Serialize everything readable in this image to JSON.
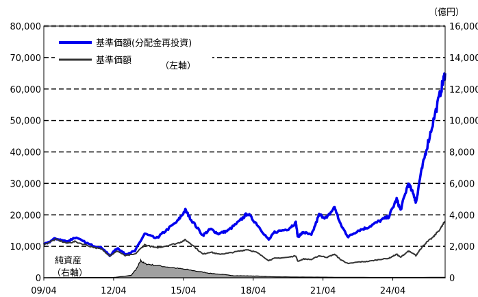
{
  "chart_data": {
    "type": "line",
    "unit_right": "（億円）",
    "left_axis": {
      "min": 0,
      "max": 80000,
      "ticks": [
        "0",
        "10,000",
        "20,000",
        "30,000",
        "40,000",
        "50,000",
        "60,000",
        "70,000",
        "80,000"
      ]
    },
    "right_axis": {
      "min": 0,
      "max": 16000,
      "ticks": [
        "0",
        "2,000",
        "4,000",
        "6,000",
        "8,000",
        "10,000",
        "12,000",
        "14,000",
        "16,000"
      ]
    },
    "x_axis": {
      "start": "2009-04",
      "end": "2026-07",
      "tick_labels": [
        "09/04",
        "12/04",
        "15/04",
        "18/04",
        "21/04",
        "24/04"
      ],
      "tick_dates": [
        "2009-04",
        "2012-04",
        "2015-04",
        "2018-04",
        "2021-04",
        "2024-04"
      ]
    },
    "grid": "horizontal-dashed",
    "legend": {
      "placement": "top-left",
      "items": [
        "基準価額(分配金再投資)",
        "基準価額"
      ],
      "note": "（左軸）"
    },
    "area_label": [
      "純資産",
      "（右軸）"
    ],
    "series": [
      {
        "name": "基準価額(分配金再投資)",
        "axis": "left",
        "color": "#0000ee",
        "points": [
          [
            "2009-04",
            10500
          ],
          [
            "2009-10",
            12500
          ],
          [
            "2010-04",
            11500
          ],
          [
            "2010-08",
            12800
          ],
          [
            "2011-04",
            10500
          ],
          [
            "2011-10",
            9500
          ],
          [
            "2012-02",
            7000
          ],
          [
            "2012-06",
            9500
          ],
          [
            "2012-10",
            7500
          ],
          [
            "2013-03",
            8500
          ],
          [
            "2013-08",
            14000
          ],
          [
            "2014-02",
            12500
          ],
          [
            "2014-06",
            14500
          ],
          [
            "2015-01",
            18000
          ],
          [
            "2015-05",
            21500
          ],
          [
            "2015-08",
            18500
          ],
          [
            "2016-02",
            13500
          ],
          [
            "2016-06",
            15500
          ],
          [
            "2016-10",
            14000
          ],
          [
            "2017-03",
            15000
          ],
          [
            "2017-09",
            18000
          ],
          [
            "2018-01",
            20500
          ],
          [
            "2018-06",
            17000
          ],
          [
            "2018-12",
            12000
          ],
          [
            "2019-03",
            14500
          ],
          [
            "2019-10",
            15500
          ],
          [
            "2020-02",
            17500
          ],
          [
            "2020-03",
            13000
          ],
          [
            "2020-06",
            14500
          ],
          [
            "2020-10",
            13500
          ],
          [
            "2021-02",
            20000
          ],
          [
            "2021-06",
            19000
          ],
          [
            "2021-10",
            22500
          ],
          [
            "2022-01",
            17000
          ],
          [
            "2022-05",
            13000
          ],
          [
            "2022-10",
            15000
          ],
          [
            "2023-03",
            16000
          ],
          [
            "2023-09",
            18000
          ],
          [
            "2024-02",
            19500
          ],
          [
            "2024-06",
            25000
          ],
          [
            "2024-08",
            21500
          ],
          [
            "2024-12",
            30000
          ],
          [
            "2025-03",
            26000
          ],
          [
            "2025-04",
            24000
          ],
          [
            "2025-06",
            31500
          ],
          [
            "2025-09",
            40000
          ],
          [
            "2026-01",
            50000
          ],
          [
            "2026-05",
            60000
          ],
          [
            "2026-07",
            65000
          ]
        ]
      },
      {
        "name": "基準価額",
        "axis": "left",
        "color": "#333333",
        "points": [
          [
            "2009-04",
            10500
          ],
          [
            "2009-10",
            12200
          ],
          [
            "2010-04",
            11000
          ],
          [
            "2010-08",
            11500
          ],
          [
            "2011-04",
            10000
          ],
          [
            "2011-10",
            9000
          ],
          [
            "2012-02",
            7000
          ],
          [
            "2012-06",
            8500
          ],
          [
            "2012-10",
            7000
          ],
          [
            "2013-03",
            7500
          ],
          [
            "2013-08",
            10500
          ],
          [
            "2014-02",
            9500
          ],
          [
            "2014-06",
            10000
          ],
          [
            "2015-01",
            11000
          ],
          [
            "2015-05",
            12000
          ],
          [
            "2015-08",
            10800
          ],
          [
            "2016-02",
            7500
          ],
          [
            "2016-06",
            8200
          ],
          [
            "2016-10",
            7500
          ],
          [
            "2017-03",
            7800
          ],
          [
            "2017-09",
            8500
          ],
          [
            "2018-01",
            9000
          ],
          [
            "2018-06",
            8000
          ],
          [
            "2018-12",
            5500
          ],
          [
            "2019-03",
            6200
          ],
          [
            "2019-10",
            6500
          ],
          [
            "2020-02",
            7000
          ],
          [
            "2020-03",
            5200
          ],
          [
            "2020-06",
            6000
          ],
          [
            "2020-10",
            5800
          ],
          [
            "2021-02",
            7000
          ],
          [
            "2021-06",
            6500
          ],
          [
            "2021-10",
            7500
          ],
          [
            "2022-01",
            5800
          ],
          [
            "2022-05",
            4500
          ],
          [
            "2022-10",
            5000
          ],
          [
            "2023-03",
            5200
          ],
          [
            "2023-09",
            5800
          ],
          [
            "2024-02",
            6200
          ],
          [
            "2024-06",
            7500
          ],
          [
            "2024-08",
            6500
          ],
          [
            "2024-12",
            8500
          ],
          [
            "2025-03",
            7500
          ],
          [
            "2025-04",
            7000
          ],
          [
            "2025-06",
            9000
          ],
          [
            "2025-09",
            11000
          ],
          [
            "2026-01",
            13000
          ],
          [
            "2026-05",
            16000
          ],
          [
            "2026-07",
            18000
          ]
        ]
      },
      {
        "name": "純資産",
        "axis": "right",
        "type": "area",
        "color": "#a0a0a0",
        "points": [
          [
            "2009-04",
            10
          ],
          [
            "2012-04",
            20
          ],
          [
            "2013-01",
            150
          ],
          [
            "2013-04",
            600
          ],
          [
            "2013-06",
            1100
          ],
          [
            "2013-08",
            900
          ],
          [
            "2013-12",
            820
          ],
          [
            "2014-06",
            720
          ],
          [
            "2015-01",
            600
          ],
          [
            "2015-06",
            520
          ],
          [
            "2016-01",
            380
          ],
          [
            "2016-06",
            280
          ],
          [
            "2017-01",
            200
          ],
          [
            "2017-06",
            130
          ],
          [
            "2018-01",
            120
          ],
          [
            "2018-06",
            110
          ],
          [
            "2019-01",
            70
          ],
          [
            "2020-01",
            50
          ],
          [
            "2021-01",
            40
          ],
          [
            "2022-01",
            30
          ],
          [
            "2024-01",
            20
          ],
          [
            "2026-07",
            25
          ]
        ]
      }
    ]
  }
}
